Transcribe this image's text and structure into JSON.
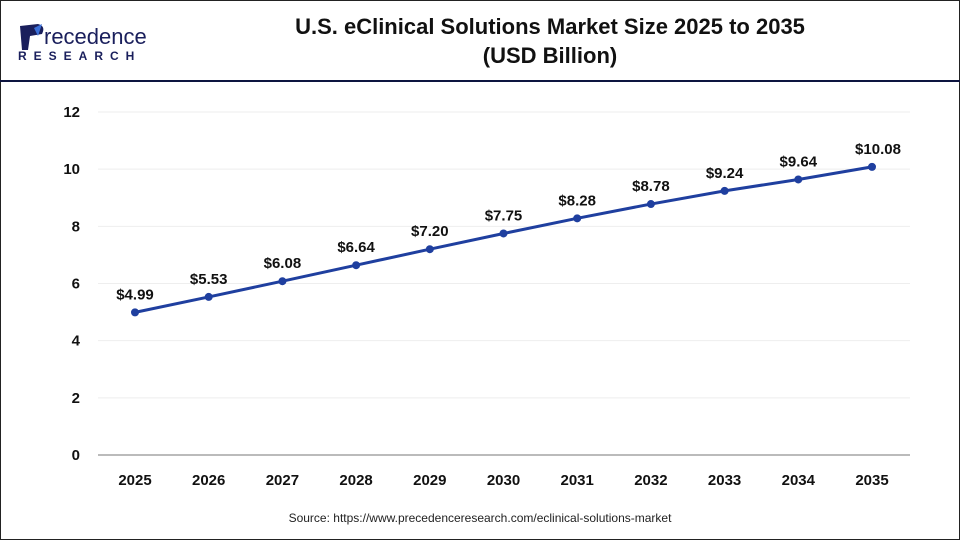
{
  "brand": {
    "name": "Precedence",
    "sub": "RESEARCH"
  },
  "header": {
    "title_line1": "U.S. eClinical Solutions Market Size 2025 to 2035",
    "title_line2": "(USD Billion)"
  },
  "source": "Source: https://www.precedenceresearch.com/eclinical-solutions-market",
  "chart_data": {
    "type": "line",
    "title": "U.S. eClinical Solutions Market Size 2025 to 2035 (USD Billion)",
    "categories": [
      "2025",
      "2026",
      "2027",
      "2028",
      "2029",
      "2030",
      "2031",
      "2032",
      "2033",
      "2034",
      "2035"
    ],
    "values": [
      4.99,
      5.53,
      6.08,
      6.64,
      7.2,
      7.75,
      8.28,
      8.78,
      9.24,
      9.64,
      10.08
    ],
    "data_labels": [
      "$4.99",
      "$5.53",
      "$6.08",
      "$6.64",
      "$7.20",
      "$7.75",
      "$8.28",
      "$8.78",
      "$9.24",
      "$9.64",
      "$10.08"
    ],
    "ylim": [
      0,
      12
    ],
    "yticks": [
      "0",
      "2",
      "4",
      "6",
      "8",
      "10",
      "12"
    ],
    "grid": true,
    "line_color": "#1f3f9f"
  }
}
